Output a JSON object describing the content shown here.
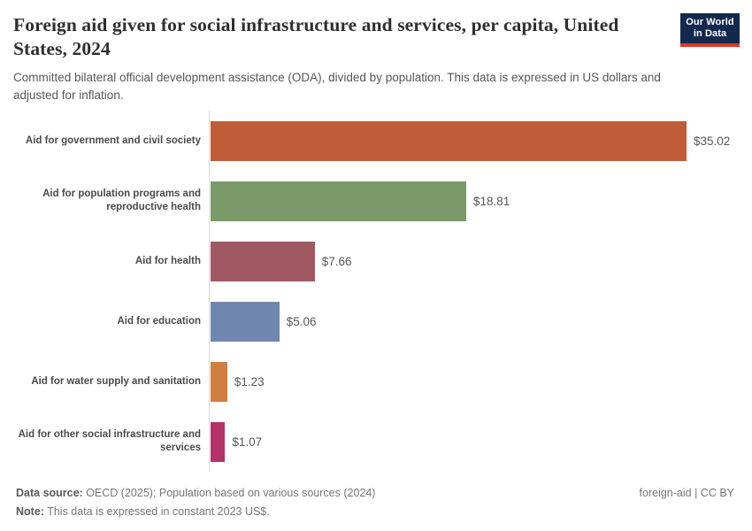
{
  "header": {
    "title": "Foreign aid given for social infrastructure and services, per capita, United States, 2024",
    "subtitle": "Committed bilateral official development assistance (ODA), divided by population. This data is expressed in US dollars and adjusted for inflation.",
    "logo": {
      "line1": "Our World",
      "line2": "in Data",
      "bg_color": "#12294d",
      "accent_color": "#dc3a2b"
    }
  },
  "chart_data": {
    "type": "bar",
    "orientation": "horizontal",
    "title": "Foreign aid given for social infrastructure and services, per capita, United States, 2024",
    "categories": [
      "Aid for government and civil society",
      "Aid for population programs and reproductive health",
      "Aid for health",
      "Aid for education",
      "Aid for water supply and sanitation",
      "Aid for other social infrastructure and services"
    ],
    "values": [
      35.02,
      18.81,
      7.66,
      5.06,
      1.23,
      1.07
    ],
    "value_labels": [
      "$35.02",
      "$18.81",
      "$7.66",
      "$5.06",
      "$1.23",
      "$1.07"
    ],
    "bar_colors": [
      "#c15c3a",
      "#7a9a6a",
      "#a05862",
      "#6e86b0",
      "#d07e42",
      "#b33268"
    ],
    "xlim": [
      0,
      35.02
    ],
    "unit": "constant 2023 US$ per capita",
    "grid": false,
    "legend": false
  },
  "footer": {
    "source_label": "Data source:",
    "source_text": " OECD (2025); Population based on various sources (2024)",
    "note_label": "Note:",
    "note_text": " This data is expressed in constant 2023 US$.",
    "license": "foreign-aid | CC BY"
  }
}
